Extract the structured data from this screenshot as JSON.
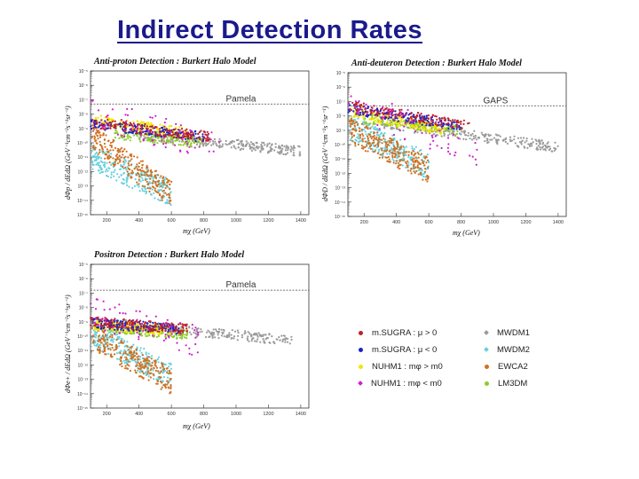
{
  "slide": {
    "title": "Indirect Detection Rates"
  },
  "chart_data": [
    {
      "id": "antiproton",
      "type": "scatter",
      "title": "Anti-proton Detection : Burkert Halo Model",
      "xlabel": "mχ (GeV)",
      "ylabel": "dΦp / dEdΩ (GeV⁻¹cm⁻²s⁻¹sr⁻¹)",
      "x_ticks": [
        "200",
        "400",
        "600",
        "800",
        "1000",
        "1200",
        "1400"
      ],
      "xlim": [
        100,
        1450
      ],
      "ylim_log10": [
        -15,
        -5
      ],
      "reference_line": {
        "label": "Pamela",
        "log10_value": -7.3
      },
      "series": [
        {
          "name": "mSUGRA : μ > 0",
          "x_range": [
            100,
            850
          ],
          "log10_y_range": [
            -8.6,
            -9.6
          ]
        },
        {
          "name": "mSUGRA : μ < 0",
          "x_range": [
            100,
            800
          ],
          "log10_y_range": [
            -8.7,
            -9.6
          ]
        },
        {
          "name": "NUHM1 : mφ > m0",
          "x_range": [
            120,
            700
          ],
          "log10_y_range": [
            -8.4,
            -9.3
          ]
        },
        {
          "name": "NUHM1 : mφ < m0",
          "x_range": [
            100,
            900
          ],
          "log10_y_range": [
            -7.8,
            -10.5
          ]
        },
        {
          "name": "MWDM1",
          "x_range": [
            400,
            1400
          ],
          "log10_y_range": [
            -9.4,
            -10.6
          ]
        },
        {
          "name": "MWDM2",
          "x_range": [
            110,
            600
          ],
          "log10_y_range": [
            -11.0,
            -13.5
          ]
        },
        {
          "name": "EWCA2",
          "x_range": [
            110,
            600
          ],
          "log10_y_range": [
            -9.6,
            -13.6
          ]
        },
        {
          "name": "LM3DM",
          "x_range": [
            250,
            800
          ],
          "log10_y_range": [
            -9.4,
            -10.0
          ]
        }
      ]
    },
    {
      "id": "antideuteron",
      "type": "scatter",
      "title": "Anti-deuteron Detection : Burkert Halo Model",
      "xlabel": "mχ (GeV)",
      "ylabel": "dΦD / dEdΩ (GeV⁻¹cm⁻²s⁻¹sr⁻¹)",
      "x_ticks": [
        "200",
        "400",
        "600",
        "800",
        "1000",
        "1200",
        "1400"
      ],
      "xlim": [
        100,
        1450
      ],
      "ylim_log10": [
        -15,
        -5
      ],
      "reference_line": {
        "label": "GAPS",
        "log10_value": -7.3
      },
      "series": [
        {
          "name": "mSUGRA : μ > 0",
          "x_range": [
            100,
            850
          ],
          "log10_y_range": [
            -7.3,
            -8.7
          ]
        },
        {
          "name": "mSUGRA : μ < 0",
          "x_range": [
            100,
            800
          ],
          "log10_y_range": [
            -7.5,
            -8.7
          ]
        },
        {
          "name": "NUHM1 : mφ > m0",
          "x_range": [
            120,
            700
          ],
          "log10_y_range": [
            -7.8,
            -9.0
          ]
        },
        {
          "name": "NUHM1 : mφ < m0",
          "x_range": [
            100,
            900
          ],
          "log10_y_range": [
            -7.0,
            -10.5
          ]
        },
        {
          "name": "MWDM1",
          "x_range": [
            300,
            1400
          ],
          "log10_y_range": [
            -8.5,
            -10.2
          ]
        },
        {
          "name": "MWDM2",
          "x_range": [
            110,
            600
          ],
          "log10_y_range": [
            -8.8,
            -11.5
          ]
        },
        {
          "name": "EWCA2",
          "x_range": [
            110,
            600
          ],
          "log10_y_range": [
            -9.0,
            -11.8
          ]
        },
        {
          "name": "LM3DM",
          "x_range": [
            200,
            800
          ],
          "log10_y_range": [
            -8.2,
            -9.0
          ]
        }
      ]
    },
    {
      "id": "positron",
      "type": "scatter",
      "title": "Positron Detection : Burkert Halo Model",
      "xlabel": "mχ (GeV)",
      "ylabel": "dΦe+ / dEdΩ (GeV⁻¹cm⁻²s⁻¹sr⁻¹)",
      "x_ticks": [
        "200",
        "400",
        "600",
        "800",
        "1000",
        "1200",
        "1400"
      ],
      "xlim": [
        100,
        1450
      ],
      "ylim_log10": [
        -15,
        -5
      ],
      "reference_line": {
        "label": "Pamela",
        "log10_value": -6.8
      },
      "series": [
        {
          "name": "mSUGRA : μ > 0",
          "x_range": [
            100,
            700
          ],
          "log10_y_range": [
            -9.0,
            -9.5
          ]
        },
        {
          "name": "mSUGRA : μ < 0",
          "x_range": [
            100,
            650
          ],
          "log10_y_range": [
            -9.1,
            -9.5
          ]
        },
        {
          "name": "NUHM1 : mφ > m0",
          "x_range": [
            120,
            600
          ],
          "log10_y_range": [
            -9.2,
            -9.6
          ]
        },
        {
          "name": "NUHM1 : mφ < m0",
          "x_range": [
            100,
            800
          ],
          "log10_y_range": [
            -8.3,
            -10.5
          ]
        },
        {
          "name": "MWDM1",
          "x_range": [
            300,
            1350
          ],
          "log10_y_range": [
            -9.2,
            -10.3
          ]
        },
        {
          "name": "MWDM2",
          "x_range": [
            110,
            600
          ],
          "log10_y_range": [
            -9.8,
            -12.8
          ]
        },
        {
          "name": "EWCA2",
          "x_range": [
            110,
            600
          ],
          "log10_y_range": [
            -10.0,
            -13.2
          ]
        },
        {
          "name": "LM3DM",
          "x_range": [
            200,
            700
          ],
          "log10_y_range": [
            -9.4,
            -9.9
          ]
        }
      ]
    }
  ],
  "legend": {
    "items": [
      {
        "label": "m.SUGRA : μ  >  0",
        "color": "#c0202a",
        "symbol": "dot"
      },
      {
        "label": "MWDM1",
        "color": "#9a9a9a",
        "symbol": "star"
      },
      {
        "label": "m.SUGRA : μ  <  0",
        "color": "#1a22c8",
        "symbol": "dot"
      },
      {
        "label": "MWDM2",
        "color": "#66d0dd",
        "symbol": "star"
      },
      {
        "label": "NUHM1 : mφ  > m0",
        "color": "#f2e600",
        "symbol": "dot"
      },
      {
        "label": "EWCA2",
        "color": "#d07020",
        "symbol": "dot"
      },
      {
        "label": "NUHM1 : mφ  < m0",
        "color": "#d020c8",
        "symbol": "star"
      },
      {
        "label": "LM3DM",
        "color": "#8ccc2a",
        "symbol": "dot"
      }
    ]
  },
  "colors": {
    "title": "#1a1a8c",
    "mSUGRA_pos": "#c0202a",
    "mSUGRA_neg": "#1a22c8",
    "NUHM1_gt": "#f2e600",
    "NUHM1_lt": "#d020c8",
    "MWDM1": "#9a9a9a",
    "MWDM2": "#66d0dd",
    "EWCA2": "#d07020",
    "LM3DM": "#8ccc2a"
  }
}
